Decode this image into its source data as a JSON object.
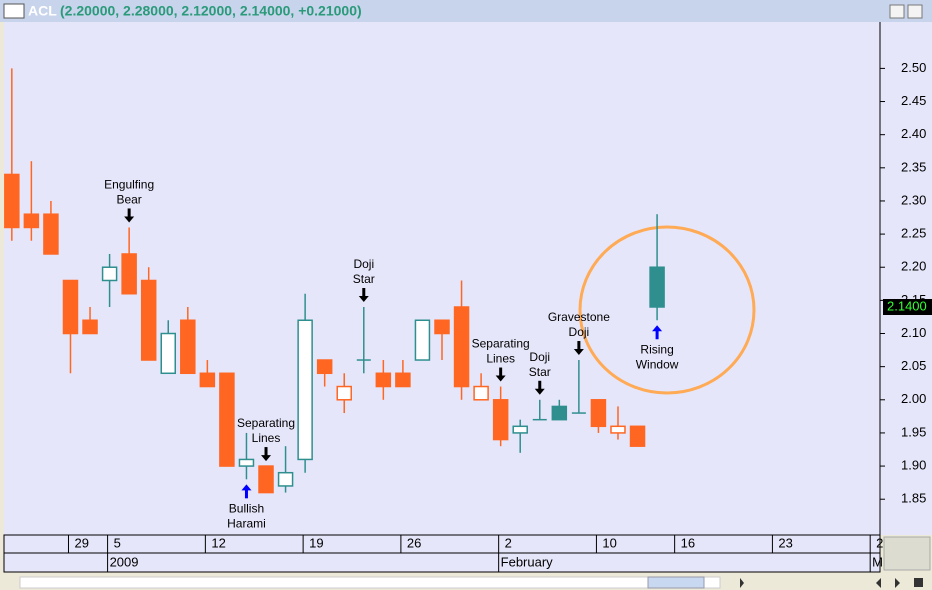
{
  "chart_data": {
    "type": "candlestick",
    "title": "ACL",
    "subtitle": "(2.20000, 2.28000, 2.12000, 2.14000, +0.21000)",
    "series": [
      {
        "open": [
          2.34,
          2.28,
          2.28,
          2.18,
          2.12,
          2.18,
          2.22,
          2.18,
          2.04,
          2.12,
          2.04,
          2.04,
          1.9,
          1.9,
          1.87,
          1.91,
          2.06,
          2.0,
          2.06,
          2.04,
          2.04,
          2.06,
          2.12,
          2.14,
          2.0,
          2.0,
          1.95,
          1.97,
          1.99,
          1.98,
          2.0,
          1.95,
          1.96,
          2.2
        ],
        "high": [
          2.5,
          2.36,
          2.3,
          2.18,
          2.14,
          2.22,
          2.26,
          2.2,
          2.12,
          2.14,
          2.06,
          2.04,
          1.95,
          1.9,
          1.93,
          2.16,
          2.06,
          2.04,
          2.14,
          2.06,
          2.06,
          2.12,
          2.12,
          2.18,
          2.04,
          2.02,
          1.97,
          2.0,
          2.0,
          2.06,
          2.0,
          1.99,
          1.96,
          2.28
        ],
        "low": [
          2.24,
          2.24,
          2.22,
          2.04,
          2.1,
          2.14,
          2.16,
          2.06,
          2.04,
          2.04,
          2.02,
          1.9,
          1.88,
          1.86,
          1.86,
          1.89,
          2.02,
          1.98,
          2.04,
          2.0,
          2.02,
          2.06,
          2.06,
          2.0,
          2.0,
          1.93,
          1.92,
          1.97,
          1.97,
          1.98,
          1.95,
          1.94,
          1.93,
          2.12
        ],
        "close": [
          2.26,
          2.26,
          2.22,
          2.1,
          2.1,
          2.2,
          2.16,
          2.06,
          2.1,
          2.04,
          2.02,
          1.9,
          1.91,
          1.86,
          1.89,
          2.12,
          2.04,
          2.02,
          2.06,
          2.02,
          2.02,
          2.12,
          2.1,
          2.02,
          2.02,
          1.94,
          1.96,
          1.97,
          1.97,
          1.98,
          1.96,
          1.96,
          1.93,
          2.14
        ],
        "colors": [
          "#ff6622",
          "#ff6622",
          "#ff6622",
          "#ff6622",
          "#ff6622",
          "#2f8f8f",
          "#ff6622",
          "#ff6622",
          "#2f8f8f",
          "#ff6622",
          "#ff6622",
          "#ff6622",
          "#2f8f8f",
          "#ff6622",
          "#2f8f8f",
          "#2f8f8f",
          "#ff6622",
          "#ff6622",
          "#2f8f8f",
          "#ff6622",
          "#ff6622",
          "#2f8f8f",
          "#ff6622",
          "#ff6622",
          "#ff6622",
          "#ff6622",
          "#2f8f8f",
          "#2f8f8f",
          "#2f8f8f",
          "#2f8f8f",
          "#ff6622",
          "#ff6622",
          "#ff6622",
          "#2f8f8f"
        ],
        "hollow": [
          false,
          false,
          false,
          false,
          false,
          true,
          false,
          false,
          true,
          false,
          false,
          false,
          true,
          false,
          true,
          true,
          false,
          true,
          false,
          false,
          false,
          true,
          false,
          false,
          true,
          false,
          true,
          false,
          false,
          false,
          false,
          true,
          false,
          false
        ]
      }
    ],
    "xlim": [
      -0.4,
      44.4
    ],
    "xticks": [
      {
        "value": 3,
        "label": "29"
      },
      {
        "value": 5,
        "label": "5"
      },
      {
        "value": 10,
        "label": "12"
      },
      {
        "value": 15,
        "label": "19"
      },
      {
        "value": 20,
        "label": "26"
      },
      {
        "value": 25,
        "label": "2"
      },
      {
        "value": 30,
        "label": "10"
      },
      {
        "value": 34,
        "label": "16"
      },
      {
        "value": 39,
        "label": "23"
      },
      {
        "value": 44,
        "label": "2"
      }
    ],
    "period_ticks": [
      {
        "value": 5,
        "label": "2009"
      },
      {
        "value": 25,
        "label": "February"
      },
      {
        "value": 44,
        "label": "M"
      }
    ],
    "ylim": [
      1.796,
      2.57
    ],
    "yticks": [
      1.85,
      {
        "value": 1.9,
        "label": "1.90"
      },
      1.95,
      {
        "value": 2,
        "label": "2.00"
      },
      2.05,
      {
        "value": 2.1,
        "label": "2.10"
      },
      2.15,
      {
        "value": 2.2,
        "label": "2.20"
      },
      2.25,
      {
        "value": 2.3,
        "label": "2.30"
      },
      2.35,
      {
        "value": 2.4,
        "label": "2.40"
      },
      2.45,
      {
        "value": 2.5,
        "label": "2.50"
      }
    ],
    "last_price": {
      "value": 2.14,
      "label": "2.1400"
    },
    "annotations": [
      {
        "lines": [
          "Engulfing",
          "Bear"
        ],
        "index": 6,
        "arrow": "down",
        "color": "#000000"
      },
      {
        "lines": [
          "Bullish",
          "Harami"
        ],
        "index": 12,
        "arrow": "up",
        "color": "#0000ff"
      },
      {
        "lines": [
          "Separating",
          "Lines"
        ],
        "index": 13,
        "arrow": "down",
        "color": "#000000"
      },
      {
        "lines": [
          "Doji",
          "Star"
        ],
        "index": 18,
        "arrow": "down",
        "color": "#000000"
      },
      {
        "lines": [
          "Separating",
          "Lines"
        ],
        "index": 25,
        "arrow": "down",
        "color": "#000000"
      },
      {
        "lines": [
          "Doji",
          "Star"
        ],
        "index": 27,
        "arrow": "down",
        "color": "#000000"
      },
      {
        "lines": [
          "Gravestone",
          "Doji"
        ],
        "index": 29,
        "arrow": "down",
        "color": "#000000"
      },
      {
        "lines": [
          "Rising",
          "Window"
        ],
        "index": 33,
        "arrow": "up",
        "color": "#0000ff"
      }
    ]
  }
}
